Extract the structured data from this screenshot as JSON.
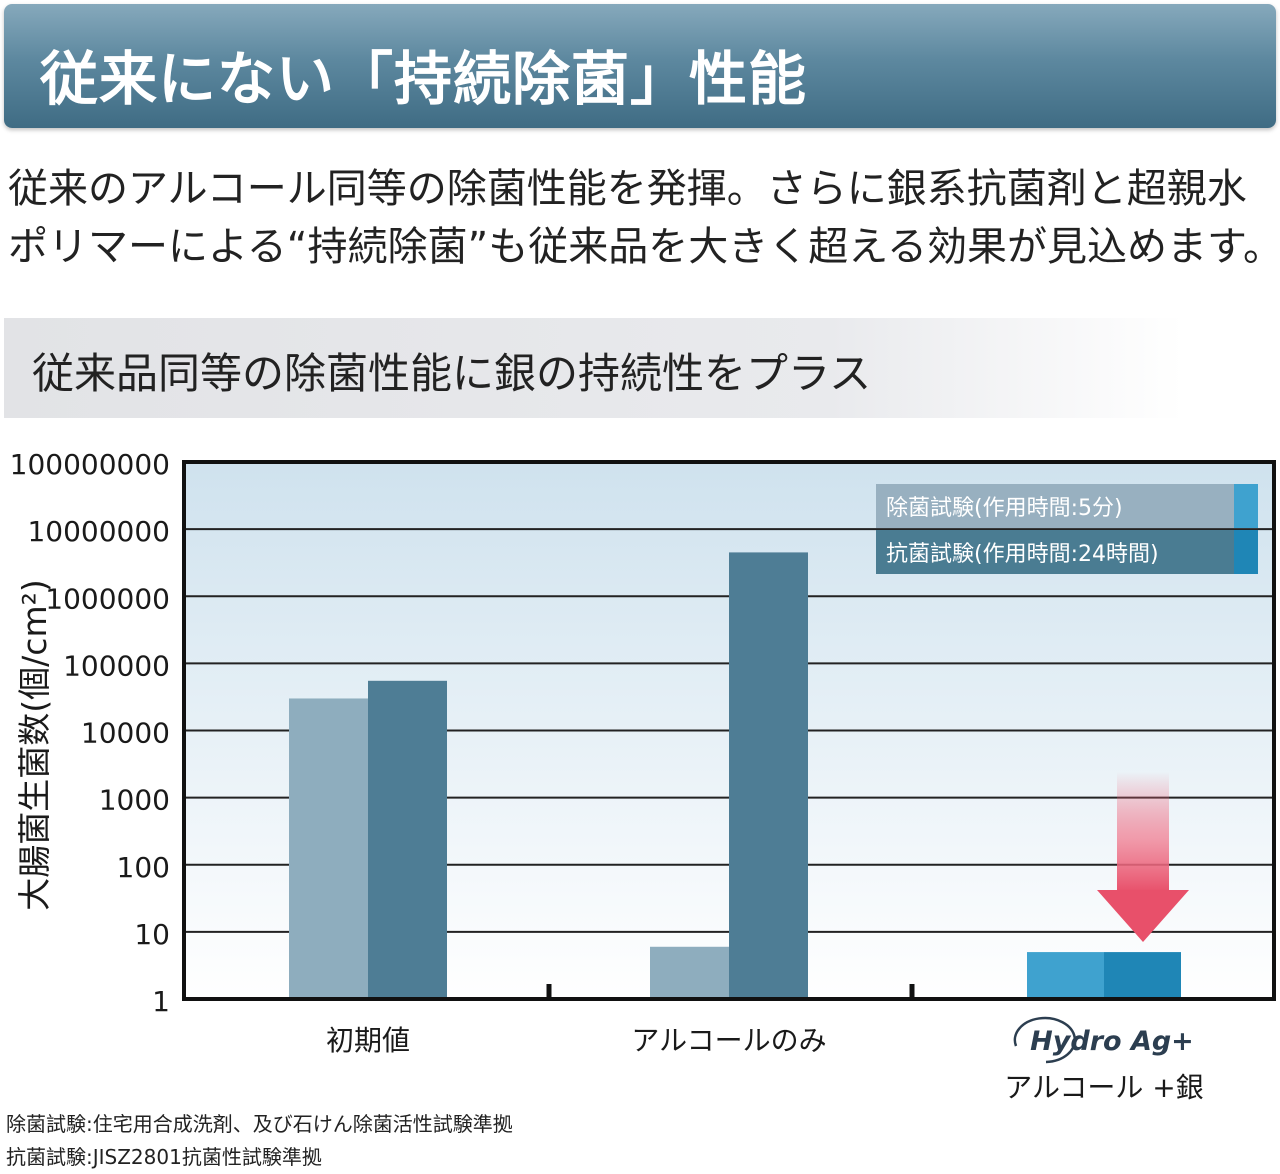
{
  "header": {
    "title": "従来にない「持続除菌」性能"
  },
  "intro": {
    "line1": "従来のアルコール同等の除菌性能を発揮。さらに銀系抗菌剤と超親水",
    "line2": "ポリマーによる“持続除菌”も従来品を大きく超える効果が見込めます。"
  },
  "subheading": "従来品同等の除菌性能に銀の持続性をプラス",
  "chart_data": {
    "type": "bar",
    "y_scale": "log",
    "ylabel": "大腸菌生菌数(個/cm²)",
    "ylim": [
      1,
      100000000
    ],
    "y_ticks": [
      "100000000",
      "10000000",
      "1000000",
      "100000",
      "10000",
      "1000",
      "100",
      "10",
      "1"
    ],
    "categories": [
      "初期値",
      "アルコールのみ",
      "アルコール +銀"
    ],
    "series": [
      {
        "name": "除菌試験(作用時間:5分)",
        "values": [
          30000,
          6,
          5
        ],
        "color": "#8eadbe",
        "highlight_color": "#3fa2cf"
      },
      {
        "name": "抗菌試験(作用時間:24時間)",
        "values": [
          55000,
          4500000,
          5
        ],
        "color": "#4e7d95",
        "highlight_color": "#1f86b6"
      }
    ],
    "highlight_category": "アルコール +銀",
    "logo_text": "Hydro Ag+",
    "legend_position": "top-right",
    "grid": true,
    "colors": {
      "background_top": "#cfe2ee",
      "background_bottom": "#ffffff",
      "arrow": "#e8506a"
    }
  },
  "notes": {
    "line1": "除菌試験:住宅用合成洗剤、及び石けん除菌活性試験準拠",
    "line2": "抗菌試験:JISZ2801抗菌性試験準拠"
  }
}
